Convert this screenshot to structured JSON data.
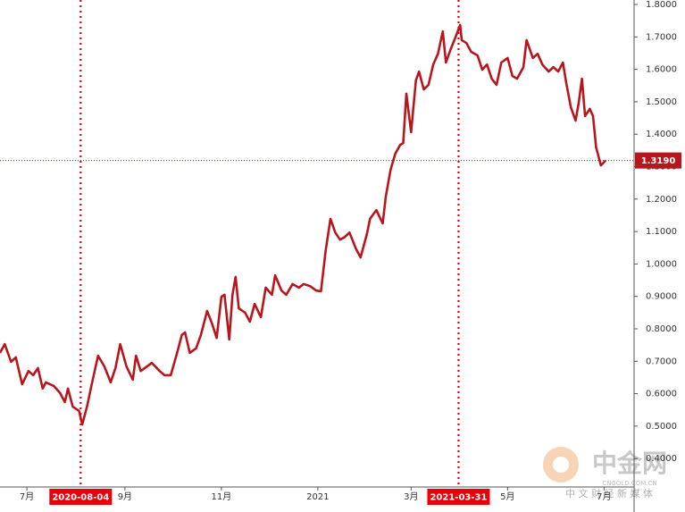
{
  "chart_data": {
    "type": "line",
    "x": [
      "2020-06-14",
      "2020-06-17",
      "2020-06-21",
      "2020-06-24",
      "2020-06-28",
      "2020-07-02",
      "2020-07-05",
      "2020-07-08",
      "2020-07-11",
      "2020-07-13",
      "2020-07-18",
      "2020-07-22",
      "2020-07-25",
      "2020-07-27",
      "2020-07-30",
      "2020-08-03",
      "2020-08-05",
      "2020-08-08",
      "2020-08-11",
      "2020-08-15",
      "2020-08-19",
      "2020-08-23",
      "2020-08-26",
      "2020-08-29",
      "2020-09-02",
      "2020-09-06",
      "2020-09-08",
      "2020-09-11",
      "2020-09-15",
      "2020-09-18",
      "2020-09-23",
      "2020-09-26",
      "2020-09-30",
      "2020-10-04",
      "2020-10-07",
      "2020-10-09",
      "2020-10-12",
      "2020-10-16",
      "2020-10-19",
      "2020-10-23",
      "2020-10-26",
      "2020-10-29",
      "2020-11-01",
      "2020-11-03",
      "2020-11-06",
      "2020-11-08",
      "2020-11-10",
      "2020-11-12",
      "2020-11-16",
      "2020-11-19",
      "2020-11-22",
      "2020-11-26",
      "2020-11-29",
      "2020-12-03",
      "2020-12-05",
      "2020-12-09",
      "2020-12-12",
      "2020-12-16",
      "2020-12-20",
      "2020-12-23",
      "2020-12-27",
      "2020-12-31",
      "2021-01-03",
      "2021-01-06",
      "2021-01-09",
      "2021-01-12",
      "2021-01-15",
      "2021-01-18",
      "2021-01-21",
      "2021-01-25",
      "2021-01-28",
      "2021-02-01",
      "2021-02-03",
      "2021-02-07",
      "2021-02-11",
      "2021-02-13",
      "2021-02-16",
      "2021-02-19",
      "2021-02-22",
      "2021-02-24",
      "2021-02-26",
      "2021-03-01",
      "2021-03-04",
      "2021-03-06",
      "2021-03-09",
      "2021-03-12",
      "2021-03-15",
      "2021-03-18",
      "2021-03-21",
      "2021-03-23",
      "2021-03-26",
      "2021-03-29",
      "2021-04-01",
      "2021-04-02",
      "2021-04-05",
      "2021-04-08",
      "2021-04-12",
      "2021-04-15",
      "2021-04-18",
      "2021-04-21",
      "2021-04-24",
      "2021-04-27",
      "2021-05-01",
      "2021-05-04",
      "2021-05-07",
      "2021-05-11",
      "2021-05-13",
      "2021-05-17",
      "2021-05-20",
      "2021-05-23",
      "2021-05-27",
      "2021-05-30",
      "2021-06-02",
      "2021-06-05",
      "2021-06-07",
      "2021-06-10",
      "2021-06-13",
      "2021-06-15",
      "2021-06-17",
      "2021-06-19",
      "2021-06-22",
      "2021-06-24",
      "2021-06-26",
      "2021-06-29",
      "2021-07-02"
    ],
    "series": [
      {
        "color": "#b8161c",
        "values": [
          0.726,
          0.753,
          0.698,
          0.712,
          0.629,
          0.67,
          0.657,
          0.679,
          0.616,
          0.635,
          0.624,
          0.602,
          0.574,
          0.616,
          0.56,
          0.547,
          0.505,
          0.56,
          0.629,
          0.717,
          0.684,
          0.635,
          0.679,
          0.753,
          0.684,
          0.643,
          0.717,
          0.67,
          0.684,
          0.695,
          0.67,
          0.657,
          0.657,
          0.726,
          0.781,
          0.789,
          0.726,
          0.74,
          0.781,
          0.855,
          0.817,
          0.772,
          0.899,
          0.905,
          0.767,
          0.905,
          0.96,
          0.863,
          0.85,
          0.822,
          0.877,
          0.836,
          0.927,
          0.905,
          0.965,
          0.918,
          0.905,
          0.938,
          0.927,
          0.938,
          0.932,
          0.918,
          0.916,
          1.042,
          1.139,
          1.097,
          1.075,
          1.083,
          1.097,
          1.048,
          1.02,
          1.092,
          1.139,
          1.166,
          1.125,
          1.208,
          1.29,
          1.34,
          1.367,
          1.373,
          1.525,
          1.406,
          1.566,
          1.593,
          1.538,
          1.552,
          1.615,
          1.648,
          1.717,
          1.621,
          1.662,
          1.698,
          1.737,
          1.69,
          1.681,
          1.654,
          1.643,
          1.599,
          1.615,
          1.571,
          1.552,
          1.621,
          1.635,
          1.58,
          1.571,
          1.607,
          1.69,
          1.635,
          1.648,
          1.615,
          1.593,
          1.607,
          1.593,
          1.621,
          1.56,
          1.483,
          1.442,
          1.497,
          1.571,
          1.456,
          1.478,
          1.456,
          1.359,
          1.304,
          1.319
        ]
      }
    ],
    "xlim": [
      "2020-06-14",
      "2021-07-20"
    ],
    "xticks": [
      {
        "value": "2020-07-01",
        "label": "7月"
      },
      {
        "value": "2020-09-01",
        "label": "9月"
      },
      {
        "value": "2020-11-01",
        "label": "11月"
      },
      {
        "value": "2021-01-01",
        "label": "2021"
      },
      {
        "value": "2021-03-01",
        "label": "3月"
      },
      {
        "value": "2021-05-01",
        "label": "5月"
      },
      {
        "value": "2021-07-01",
        "label": "7月"
      }
    ],
    "ylim": [
      0.3124,
      1.8138
    ],
    "yticks": [
      {
        "value": 0.4,
        "label": "0.4000"
      },
      {
        "value": 0.5,
        "label": "0.5000"
      },
      {
        "value": 0.6,
        "label": "0.6000"
      },
      {
        "value": 0.7,
        "label": "0.7000"
      },
      {
        "value": 0.8,
        "label": "0.8000"
      },
      {
        "value": 0.9,
        "label": "0.9000"
      },
      {
        "value": 1.0,
        "label": "1.0000"
      },
      {
        "value": 1.1,
        "label": "1.1000"
      },
      {
        "value": 1.2,
        "label": "1.2000"
      },
      {
        "value": 1.3,
        "label": "1.3000"
      },
      {
        "value": 1.4,
        "label": "1.4000"
      },
      {
        "value": 1.5,
        "label": "1.5000"
      },
      {
        "value": 1.6,
        "label": "1.6000"
      },
      {
        "value": 1.7,
        "label": "1.7000"
      },
      {
        "value": 1.8,
        "label": "1.8000"
      }
    ],
    "markers": [
      "2020-08-04",
      "2021-03-31"
    ],
    "marker_color": "#e8000b",
    "last_value": {
      "value": 1.319,
      "label": "1.3190"
    },
    "watermark": {
      "logo": "中金网",
      "site": "CNGOLD.COM.CN",
      "slogan": "中 文 财 经 新 媒 体"
    }
  }
}
